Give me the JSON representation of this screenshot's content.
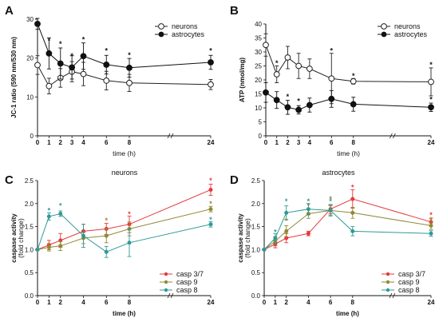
{
  "chart_data": [
    {
      "id": "A",
      "type": "line",
      "panel_label": "A",
      "title": "",
      "xlabel": "time (h)",
      "ylabel": "JC-1 ratio (590 nm/530 nm)",
      "xscale": "broken",
      "x_ticks": [
        0,
        1,
        2,
        3,
        4,
        6,
        8,
        24
      ],
      "xlim": [
        0,
        24
      ],
      "ylim": [
        0,
        30
      ],
      "y_ticks": [
        0,
        10,
        20,
        30
      ],
      "legend_position": "top-right",
      "series": [
        {
          "name": "neurons",
          "marker": "open-circle",
          "color": "#222222",
          "x": [
            0,
            1,
            2,
            3,
            4,
            6,
            8,
            24
          ],
          "y": [
            18.2,
            12.8,
            14.9,
            16.5,
            15.9,
            14.2,
            13.6,
            13.2
          ],
          "err": [
            2.4,
            2.0,
            2.4,
            2.6,
            3.0,
            2.4,
            2.2,
            1.3
          ]
        },
        {
          "name": "astrocytes",
          "marker": "filled-circle",
          "color": "#111111",
          "x": [
            0,
            1,
            2,
            3,
            4,
            6,
            8,
            24
          ],
          "y": [
            28.8,
            21.2,
            18.6,
            17.6,
            20.5,
            18.3,
            17.5,
            18.9
          ],
          "err": [
            1.4,
            4.0,
            4.0,
            3.0,
            3.4,
            2.4,
            2.4,
            1.8
          ]
        }
      ],
      "annotations": [
        {
          "text": "*",
          "x": 1,
          "y": 24.5
        },
        {
          "text": "*",
          "x": 2,
          "y": 23.6
        },
        {
          "text": "*",
          "x": 3,
          "y": 20.5
        },
        {
          "text": "*",
          "x": 4,
          "y": 24.8
        },
        {
          "text": "*",
          "x": 6,
          "y": 21.9
        },
        {
          "text": "*",
          "x": 8,
          "y": 20.8
        },
        {
          "text": "*",
          "x": 24,
          "y": 21.9
        }
      ]
    },
    {
      "id": "B",
      "type": "line",
      "panel_label": "B",
      "title": "",
      "xlabel": "time (h)",
      "ylabel": "ATP (nmol/mg)",
      "xscale": "broken",
      "x_ticks": [
        0,
        1,
        2,
        3,
        4,
        6,
        8,
        24
      ],
      "xlim": [
        0,
        24
      ],
      "ylim": [
        0,
        40
      ],
      "y_ticks": [
        0,
        5,
        10,
        15,
        20,
        25,
        30,
        35,
        40
      ],
      "legend_position": "top-right",
      "series": [
        {
          "name": "neurons",
          "marker": "open-circle",
          "color": "#222222",
          "x": [
            0,
            1,
            2,
            3,
            4,
            6,
            8,
            24
          ],
          "y": [
            32.5,
            22.0,
            28.0,
            25.0,
            24.0,
            20.5,
            19.5,
            19.3
          ],
          "err": [
            4.0,
            3.0,
            4.0,
            4.5,
            3.5,
            9.0,
            1.0,
            5.0
          ]
        },
        {
          "name": "astrocytes",
          "marker": "filled-circle",
          "color": "#111111",
          "x": [
            0,
            1,
            2,
            3,
            4,
            6,
            8,
            24
          ],
          "y": [
            15.5,
            12.8,
            10.2,
            9.3,
            11.0,
            13.2,
            11.3,
            10.2
          ],
          "err": [
            3.5,
            3.0,
            2.5,
            1.5,
            2.5,
            3.0,
            2.5,
            1.5
          ]
        }
      ],
      "annotations": [
        {
          "text": "*",
          "x": 1,
          "y": 26.0
        },
        {
          "text": "*",
          "x": 2,
          "y": 14.0
        },
        {
          "text": "*",
          "x": 3,
          "y": 12.5
        },
        {
          "text": "*",
          "x": 6,
          "y": 30.5
        },
        {
          "text": "*",
          "x": 8,
          "y": 21.5
        },
        {
          "text": "*",
          "x": 24,
          "y": 25.5
        },
        {
          "text": "*",
          "x": 24,
          "y": 13.0
        }
      ]
    },
    {
      "id": "C",
      "type": "line",
      "panel_label": "C",
      "title": "neurons",
      "xlabel": "time (h)",
      "ylabel": "caspase activity",
      "ylabel2": "(fold change)",
      "xscale": "broken",
      "x_ticks": [
        0,
        1,
        2,
        4,
        6,
        8,
        24
      ],
      "xlim": [
        0,
        24
      ],
      "ylim": [
        0,
        2.5
      ],
      "y_ticks": [
        0.0,
        0.5,
        1.0,
        1.5,
        2.0,
        2.5
      ],
      "legend_position": "bottom-right",
      "series": [
        {
          "name": "casp 3/7",
          "color": "#e8373c",
          "x": [
            0,
            1,
            2,
            4,
            6,
            8,
            24
          ],
          "y": [
            1.0,
            1.1,
            1.2,
            1.4,
            1.45,
            1.55,
            2.3
          ],
          "err": [
            0.02,
            0.1,
            0.15,
            0.15,
            0.12,
            0.18,
            0.12
          ]
        },
        {
          "name": "casp 9",
          "color": "#8e8a33",
          "x": [
            0,
            1,
            2,
            4,
            6,
            8,
            24
          ],
          "y": [
            1.0,
            1.05,
            1.08,
            1.25,
            1.3,
            1.45,
            1.88
          ],
          "err": [
            0.02,
            0.08,
            0.1,
            0.12,
            0.15,
            0.15,
            0.06
          ]
        },
        {
          "name": "casp 8",
          "color": "#2f9a96",
          "x": [
            0,
            1,
            2,
            4,
            6,
            8,
            24
          ],
          "y": [
            1.0,
            1.72,
            1.78,
            1.3,
            0.95,
            1.15,
            1.55
          ],
          "err": [
            0.02,
            0.08,
            0.06,
            0.25,
            0.12,
            0.3,
            0.06
          ]
        }
      ],
      "annotations": [
        {
          "text": "*",
          "x": 1,
          "y": 1.85,
          "color": "#2f9a96"
        },
        {
          "text": "*",
          "x": 2,
          "y": 1.95,
          "color": "#2f9a96"
        },
        {
          "text": "*",
          "x": 6,
          "y": 1.63,
          "color": "#8e8a33"
        },
        {
          "text": "*",
          "x": 8,
          "y": 1.77,
          "color": "#e8373c"
        },
        {
          "text": "*",
          "x": 24,
          "y": 2.5,
          "color": "#e8373c"
        },
        {
          "text": "*",
          "x": 24,
          "y": 2.0,
          "color": "#8e8a33"
        },
        {
          "text": "*",
          "x": 24,
          "y": 1.65,
          "color": "#2f9a96"
        }
      ]
    },
    {
      "id": "D",
      "type": "line",
      "panel_label": "D",
      "title": "astrocytes",
      "xlabel": "time (h)",
      "ylabel": "caspase activity",
      "ylabel2": "(fold change)",
      "xscale": "broken",
      "x_ticks": [
        0,
        1,
        2,
        4,
        6,
        8,
        24
      ],
      "xlim": [
        0,
        24
      ],
      "ylim": [
        0,
        2.5
      ],
      "y_ticks": [
        0.0,
        0.5,
        1.0,
        1.5,
        2.0,
        2.5
      ],
      "legend_position": "bottom-right",
      "series": [
        {
          "name": "casp 3/7",
          "color": "#e8373c",
          "x": [
            0,
            1,
            2,
            4,
            6,
            8,
            24
          ],
          "y": [
            1.0,
            1.12,
            1.25,
            1.35,
            1.88,
            2.1,
            1.6
          ],
          "err": [
            0.02,
            0.08,
            0.1,
            0.05,
            0.1,
            0.2,
            0.08
          ]
        },
        {
          "name": "casp 9",
          "color": "#8e8a33",
          "x": [
            0,
            1,
            2,
            4,
            6,
            8,
            24
          ],
          "y": [
            1.0,
            1.18,
            1.4,
            1.78,
            1.85,
            1.8,
            1.52
          ],
          "err": [
            0.02,
            0.1,
            0.12,
            0.1,
            0.1,
            0.12,
            0.08
          ]
        },
        {
          "name": "casp 8",
          "color": "#2f9a96",
          "x": [
            0,
            1,
            2,
            4,
            6,
            8,
            24
          ],
          "y": [
            1.0,
            1.25,
            1.8,
            1.88,
            1.85,
            1.4,
            1.35
          ],
          "err": [
            0.02,
            0.1,
            0.15,
            0.12,
            0.12,
            0.1,
            0.06
          ]
        }
      ],
      "annotations": [
        {
          "text": "*",
          "x": 1,
          "y": 1.38,
          "color": "#2f9a96"
        },
        {
          "text": "*",
          "x": 2,
          "y": 2.05,
          "color": "#2f9a96"
        },
        {
          "text": "*",
          "x": 4,
          "y": 2.05,
          "color": "#2f9a96"
        },
        {
          "text": "*",
          "x": 6,
          "y": 2.05,
          "color": "#2f9a96"
        },
        {
          "text": "*",
          "x": 2,
          "y": 1.62,
          "color": "#8e8a33"
        },
        {
          "text": "*",
          "x": 4,
          "y": 1.95,
          "color": "#8e8a33"
        },
        {
          "text": "*",
          "x": 6,
          "y": 2.1,
          "color": "#8e8a33"
        },
        {
          "text": "*",
          "x": 8,
          "y": 2.35,
          "color": "#e8373c"
        },
        {
          "text": "*",
          "x": 24,
          "y": 1.75,
          "color": "#e8373c"
        },
        {
          "text": "*",
          "x": 24,
          "y": 1.65,
          "color": "#8e8a33"
        }
      ]
    }
  ]
}
